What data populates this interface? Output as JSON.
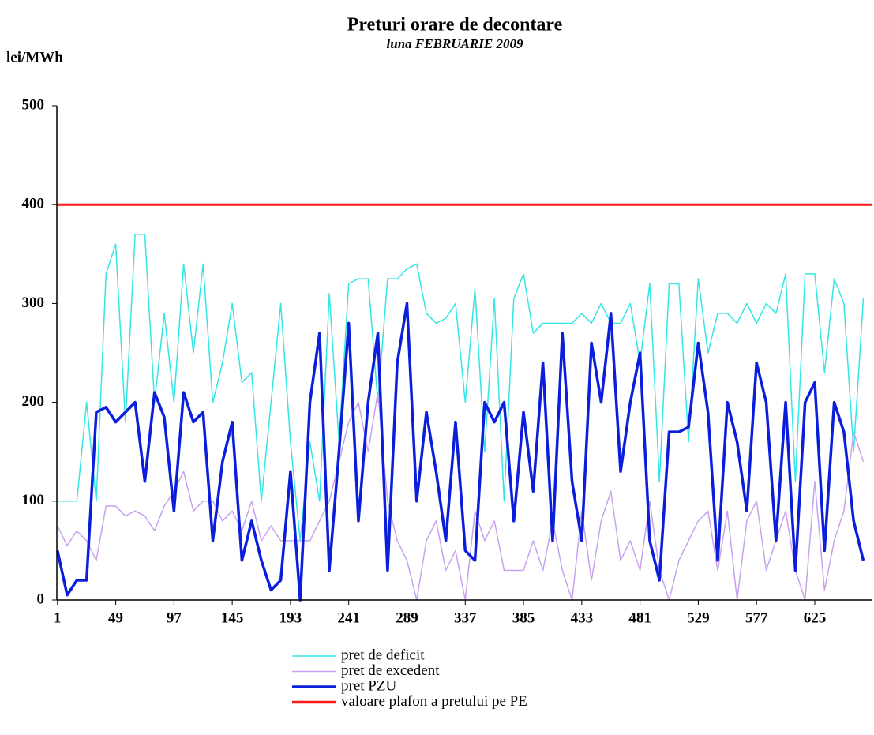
{
  "chart_data": {
    "type": "line",
    "title": "Preturi orare de decontare",
    "subtitle": "luna  FEBRUARIE 2009",
    "y_label": "lei/MWh",
    "x": [
      1,
      9,
      17,
      25,
      33,
      41,
      49,
      57,
      65,
      73,
      81,
      89,
      97,
      105,
      113,
      121,
      129,
      137,
      145,
      153,
      161,
      169,
      177,
      185,
      193,
      201,
      209,
      217,
      225,
      233,
      241,
      249,
      257,
      265,
      273,
      281,
      289,
      297,
      305,
      313,
      321,
      329,
      337,
      345,
      353,
      361,
      369,
      377,
      385,
      393,
      401,
      409,
      417,
      425,
      433,
      441,
      449,
      457,
      465,
      473,
      481,
      489,
      497,
      505,
      513,
      521,
      529,
      537,
      545,
      553,
      561,
      569,
      577,
      585,
      593,
      601,
      609,
      617,
      625,
      633,
      641,
      649,
      657,
      665
    ],
    "xlim": [
      0.5,
      672.5
    ],
    "xticks": [
      1,
      49,
      97,
      145,
      193,
      241,
      289,
      337,
      385,
      433,
      481,
      529,
      577,
      625
    ],
    "ylim": [
      0,
      500
    ],
    "yticks": [
      0,
      100,
      200,
      300,
      400,
      500
    ],
    "series": [
      {
        "name": "pret de deficit",
        "color": "#33e6e6",
        "width": 1.5,
        "values": [
          100,
          100,
          100,
          200,
          100,
          330,
          360,
          180,
          370,
          370,
          200,
          290,
          200,
          340,
          250,
          340,
          200,
          240,
          300,
          220,
          230,
          100,
          200,
          300,
          160,
          60,
          160,
          100,
          310,
          160,
          320,
          325,
          325,
          200,
          325,
          325,
          335,
          340,
          290,
          280,
          285,
          300,
          200,
          315,
          150,
          305,
          100,
          305,
          330,
          270,
          280,
          280,
          280,
          280,
          290,
          280,
          300,
          280,
          280,
          300,
          240,
          320,
          120,
          320,
          320,
          160,
          325,
          250,
          290,
          290,
          280,
          300,
          280,
          300,
          290,
          330,
          120,
          330,
          330,
          230,
          325,
          300,
          150,
          305
        ]
      },
      {
        "name": "pret de excedent",
        "color": "#c8a2f0",
        "width": 1.5,
        "values": [
          75,
          55,
          70,
          60,
          40,
          95,
          95,
          85,
          90,
          85,
          70,
          95,
          110,
          130,
          90,
          100,
          100,
          80,
          90,
          70,
          100,
          60,
          75,
          60,
          60,
          60,
          60,
          80,
          100,
          140,
          180,
          200,
          150,
          210,
          100,
          60,
          40,
          0,
          60,
          80,
          30,
          50,
          0,
          90,
          60,
          80,
          30,
          30,
          30,
          60,
          30,
          80,
          30,
          0,
          90,
          20,
          80,
          110,
          40,
          60,
          30,
          100,
          30,
          0,
          40,
          60,
          80,
          90,
          30,
          90,
          0,
          80,
          100,
          30,
          60,
          90,
          30,
          0,
          120,
          10,
          60,
          90,
          170,
          140
        ]
      },
      {
        "name": "pret PZU",
        "color": "#0a1edc",
        "width": 3.5,
        "values": [
          50,
          5,
          20,
          20,
          190,
          195,
          180,
          190,
          200,
          120,
          210,
          185,
          90,
          210,
          180,
          190,
          60,
          140,
          180,
          40,
          80,
          40,
          10,
          20,
          130,
          0,
          200,
          270,
          30,
          150,
          280,
          80,
          200,
          270,
          30,
          240,
          300,
          100,
          190,
          130,
          60,
          180,
          50,
          40,
          200,
          180,
          200,
          80,
          190,
          110,
          240,
          60,
          270,
          120,
          60,
          260,
          200,
          290,
          130,
          200,
          250,
          60,
          20,
          170,
          170,
          175,
          260,
          190,
          40,
          200,
          160,
          90,
          240,
          200,
          60,
          200,
          30,
          200,
          220,
          50,
          200,
          170,
          80,
          40
        ]
      }
    ],
    "reference_line": {
      "name": "valoare plafon a pretului pe PE",
      "color": "#ff1a1a",
      "value": 400
    }
  }
}
